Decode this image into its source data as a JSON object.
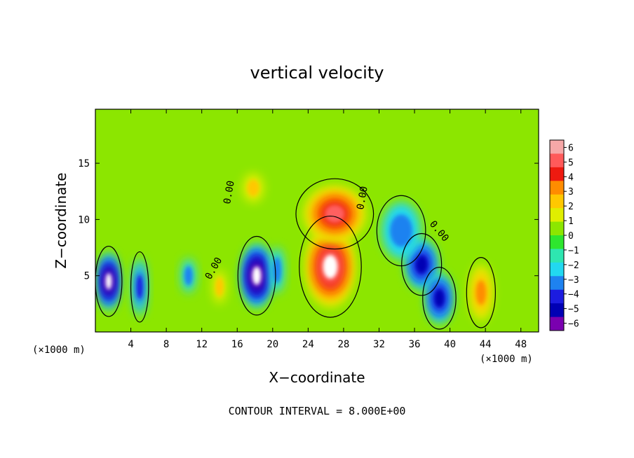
{
  "chart_data": {
    "type": "heatmap",
    "title": "vertical velocity",
    "xlabel": "X−coordinate",
    "ylabel": "Z−coordinate",
    "x_unit": "(×1000 m)",
    "y_unit": "(×1000 m)",
    "xlim": [
      0,
      50
    ],
    "ylim": [
      0,
      19.8
    ],
    "x_ticks": [
      "4",
      "8",
      "12",
      "16",
      "20",
      "24",
      "28",
      "32",
      "36",
      "40",
      "44",
      "48"
    ],
    "y_ticks": [
      "5",
      "10",
      "15"
    ],
    "contour_label": "0.00",
    "contour_interval_text": "CONTOUR INTERVAL = 8.000E+00",
    "colorbar": {
      "range": [
        -6,
        6
      ],
      "tick_labels": [
        "6",
        "5",
        "4",
        "3",
        "2",
        "1",
        "0",
        "−1",
        "−2",
        "−3",
        "−4",
        "−5",
        "−6"
      ],
      "colors": [
        "#f6a8a8",
        "#ff5a5a",
        "#ee1a10",
        "#ff8c00",
        "#ffc800",
        "#e0ee00",
        "#8ce600",
        "#2ee62e",
        "#2ee6b0",
        "#22d8f0",
        "#1e82f0",
        "#1c1ce0",
        "#0000b4",
        "#7a00b0"
      ]
    },
    "features": [
      {
        "kind": "updraft",
        "x": 26.5,
        "z": 5.8,
        "w_max": 30,
        "width_km": 2.8,
        "height_km": 3.6
      },
      {
        "kind": "updraft",
        "x": 27,
        "z": 10.5,
        "w_max": 8,
        "width_km": 3.5,
        "height_km": 2.5
      },
      {
        "kind": "updraft",
        "x": 17.8,
        "z": 12.8,
        "w_max": 3,
        "width_km": 1.2,
        "height_km": 1.3
      },
      {
        "kind": "updraft",
        "x": 43.5,
        "z": 3.5,
        "w_max": 5,
        "width_km": 1.3,
        "height_km": 2.5
      },
      {
        "kind": "updraft",
        "x": 14,
        "z": 4,
        "w_max": 2,
        "width_km": 0.8,
        "height_km": 1.5
      },
      {
        "kind": "downdraft",
        "x": 1.5,
        "z": 4.5,
        "w_max": -10,
        "width_km": 1.2,
        "height_km": 2.5
      },
      {
        "kind": "downdraft",
        "x": 18.2,
        "z": 5,
        "w_max": -10,
        "width_km": 1.7,
        "height_km": 2.8
      },
      {
        "kind": "downdraft",
        "x": 36.8,
        "z": 6,
        "w_max": -7,
        "width_km": 1.8,
        "height_km": 2.2
      },
      {
        "kind": "downdraft",
        "x": 38.8,
        "z": 3,
        "w_max": -8,
        "width_km": 1.5,
        "height_km": 2.2
      },
      {
        "kind": "downdraft",
        "x": 34.5,
        "z": 9,
        "w_max": -4,
        "width_km": 2.2,
        "height_km": 2.5
      },
      {
        "kind": "downdraft",
        "x": 5,
        "z": 4,
        "w_max": -5,
        "width_km": 0.8,
        "height_km": 2.5
      },
      {
        "kind": "downdraft",
        "x": 10.5,
        "z": 5,
        "w_max": -3,
        "width_km": 0.8,
        "height_km": 1.5
      },
      {
        "kind": "downdraft",
        "x": 20.5,
        "z": 5.5,
        "w_max": -3,
        "width_km": 0.8,
        "height_km": 2.0
      }
    ]
  }
}
